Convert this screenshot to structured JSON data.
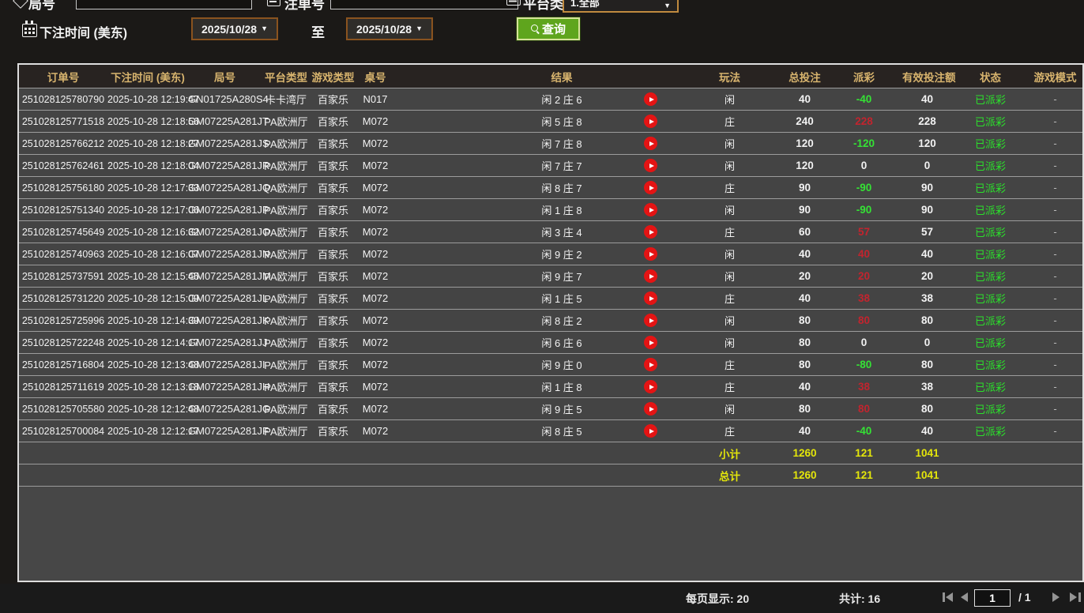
{
  "filters": {
    "round_label": "局号",
    "order_label": "注单号",
    "platform_label": "平台类型",
    "platform_value": "1.全部",
    "bet_time_label": "下注时间 (美东)",
    "to_label": "至",
    "date_from": "2025/10/28",
    "date_to": "2025/10/28",
    "query_label": "查询"
  },
  "table": {
    "headers": [
      "订单号",
      "下注时间 (美东)",
      "局号",
      "平台类型",
      "游戏类型",
      "桌号",
      "结果",
      "玩法",
      "总投注",
      "派彩",
      "有效投注额",
      "状态",
      "游戏模式"
    ],
    "rows": [
      {
        "order": "251028125780790",
        "time": "2025-10-28 12:19:47",
        "round": "GN01725A280S4",
        "platform": "卡卡湾厅",
        "game": "百家乐",
        "table_no": "N017",
        "result": "闲 2 庄 6",
        "method": "闲",
        "total": "40",
        "payout": "-40",
        "payout_class": "neg",
        "valid": "40",
        "status": "已派彩",
        "mode": "-"
      },
      {
        "order": "251028125771518",
        "time": "2025-10-28 12:18:56",
        "round": "GM07225A281JT",
        "platform": "PA欧洲厅",
        "game": "百家乐",
        "table_no": "M072",
        "result": "闲 5 庄 8",
        "method": "庄",
        "total": "240",
        "payout": "228",
        "payout_class": "pos",
        "valid": "228",
        "status": "已派彩",
        "mode": "-"
      },
      {
        "order": "251028125766212",
        "time": "2025-10-28 12:18:27",
        "round": "GM07225A281JS",
        "platform": "PA欧洲厅",
        "game": "百家乐",
        "table_no": "M072",
        "result": "闲 7 庄 8",
        "method": "闲",
        "total": "120",
        "payout": "-120",
        "payout_class": "neg",
        "valid": "120",
        "status": "已派彩",
        "mode": "-"
      },
      {
        "order": "251028125762461",
        "time": "2025-10-28 12:18:04",
        "round": "GM07225A281JR",
        "platform": "PA欧洲厅",
        "game": "百家乐",
        "table_no": "M072",
        "result": "闲 7 庄 7",
        "method": "闲",
        "total": "120",
        "payout": "0",
        "payout_class": "zero",
        "valid": "0",
        "status": "已派彩",
        "mode": "-"
      },
      {
        "order": "251028125756180",
        "time": "2025-10-28 12:17:33",
        "round": "GM07225A281JQ",
        "platform": "PA欧洲厅",
        "game": "百家乐",
        "table_no": "M072",
        "result": "闲 8 庄 7",
        "method": "庄",
        "total": "90",
        "payout": "-90",
        "payout_class": "neg",
        "valid": "90",
        "status": "已派彩",
        "mode": "-"
      },
      {
        "order": "251028125751340",
        "time": "2025-10-28 12:17:06",
        "round": "GM07225A281JP",
        "platform": "PA欧洲厅",
        "game": "百家乐",
        "table_no": "M072",
        "result": "闲 1 庄 8",
        "method": "闲",
        "total": "90",
        "payout": "-90",
        "payout_class": "neg",
        "valid": "90",
        "status": "已派彩",
        "mode": "-"
      },
      {
        "order": "251028125745649",
        "time": "2025-10-28 12:16:32",
        "round": "GM07225A281JO",
        "platform": "PA欧洲厅",
        "game": "百家乐",
        "table_no": "M072",
        "result": "闲 3 庄 4",
        "method": "庄",
        "total": "60",
        "payout": "57",
        "payout_class": "pos",
        "valid": "57",
        "status": "已派彩",
        "mode": "-"
      },
      {
        "order": "251028125740963",
        "time": "2025-10-28 12:16:07",
        "round": "GM07225A281JN",
        "platform": "PA欧洲厅",
        "game": "百家乐",
        "table_no": "M072",
        "result": "闲 9 庄 2",
        "method": "闲",
        "total": "40",
        "payout": "40",
        "payout_class": "pos",
        "valid": "40",
        "status": "已派彩",
        "mode": "-"
      },
      {
        "order": "251028125737591",
        "time": "2025-10-28 12:15:45",
        "round": "GM07225A281JM",
        "platform": "PA欧洲厅",
        "game": "百家乐",
        "table_no": "M072",
        "result": "闲 9 庄 7",
        "method": "闲",
        "total": "20",
        "payout": "20",
        "payout_class": "pos",
        "valid": "20",
        "status": "已派彩",
        "mode": "-"
      },
      {
        "order": "251028125731220",
        "time": "2025-10-28 12:15:09",
        "round": "GM07225A281JL",
        "platform": "PA欧洲厅",
        "game": "百家乐",
        "table_no": "M072",
        "result": "闲 1 庄 5",
        "method": "庄",
        "total": "40",
        "payout": "38",
        "payout_class": "pos",
        "valid": "38",
        "status": "已派彩",
        "mode": "-"
      },
      {
        "order": "251028125725996",
        "time": "2025-10-28 12:14:39",
        "round": "GM07225A281JK",
        "platform": "PA欧洲厅",
        "game": "百家乐",
        "table_no": "M072",
        "result": "闲 8 庄 2",
        "method": "闲",
        "total": "80",
        "payout": "80",
        "payout_class": "pos",
        "valid": "80",
        "status": "已派彩",
        "mode": "-"
      },
      {
        "order": "251028125722248",
        "time": "2025-10-28 12:14:17",
        "round": "GM07225A281JJ",
        "platform": "PA欧洲厅",
        "game": "百家乐",
        "table_no": "M072",
        "result": "闲 6 庄 6",
        "method": "闲",
        "total": "80",
        "payout": "0",
        "payout_class": "zero",
        "valid": "0",
        "status": "已派彩",
        "mode": "-"
      },
      {
        "order": "251028125716804",
        "time": "2025-10-28 12:13:48",
        "round": "GM07225A281JI",
        "platform": "PA欧洲厅",
        "game": "百家乐",
        "table_no": "M072",
        "result": "闲 9 庄 0",
        "method": "庄",
        "total": "80",
        "payout": "-80",
        "payout_class": "neg",
        "valid": "80",
        "status": "已派彩",
        "mode": "-"
      },
      {
        "order": "251028125711619",
        "time": "2025-10-28 12:13:18",
        "round": "GM07225A281JH",
        "platform": "PA欧洲厅",
        "game": "百家乐",
        "table_no": "M072",
        "result": "闲 1 庄 8",
        "method": "庄",
        "total": "40",
        "payout": "38",
        "payout_class": "pos",
        "valid": "38",
        "status": "已派彩",
        "mode": "-"
      },
      {
        "order": "251028125705580",
        "time": "2025-10-28 12:12:48",
        "round": "GM07225A281JG",
        "platform": "PA欧洲厅",
        "game": "百家乐",
        "table_no": "M072",
        "result": "闲 9 庄 5",
        "method": "闲",
        "total": "80",
        "payout": "80",
        "payout_class": "pos",
        "valid": "80",
        "status": "已派彩",
        "mode": "-"
      },
      {
        "order": "251028125700084",
        "time": "2025-10-28 12:12:17",
        "round": "GM07225A281JF",
        "platform": "PA欧洲厅",
        "game": "百家乐",
        "table_no": "M072",
        "result": "闲 8 庄 5",
        "method": "庄",
        "total": "40",
        "payout": "-40",
        "payout_class": "neg",
        "valid": "40",
        "status": "已派彩",
        "mode": "-"
      }
    ],
    "subtotal": {
      "label": "小计",
      "total": "1260",
      "payout": "121",
      "valid": "1041"
    },
    "grand_total": {
      "label": "总计",
      "total": "1260",
      "payout": "121",
      "valid": "1041"
    }
  },
  "pagination": {
    "per_page_label": "每页显示: 20",
    "total_label": "共计: 16",
    "page_value": "1",
    "page_total": "/  1"
  },
  "colors": {
    "header_text": "#d8b46e",
    "payout_positive": "#c2242e",
    "payout_negative": "#35e235",
    "status_paid": "#2be02b",
    "totals_yellow": "#e4e60a",
    "query_button_green": "#5fa51d",
    "date_border_brown": "#8a531f",
    "row_background": "#444444"
  }
}
